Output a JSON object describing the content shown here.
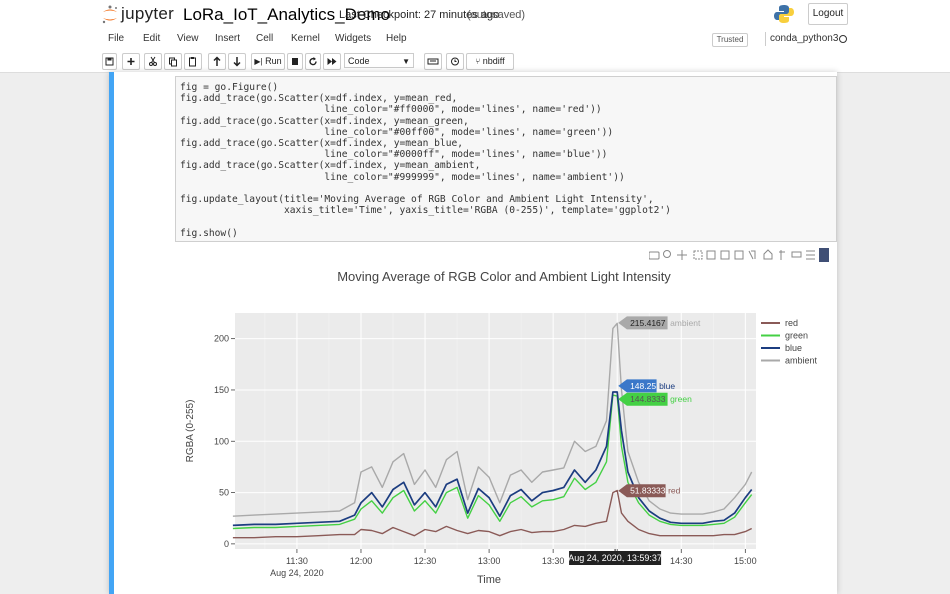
{
  "header": {
    "logo_text": "jupyter",
    "notebook_name": "LoRa_IoT_Analytics_Demo",
    "checkpoint": "Last Checkpoint: 27 minutes ago",
    "autosave_status": "(autosaved)",
    "logout_label": "Logout"
  },
  "menubar": {
    "items": [
      "File",
      "Edit",
      "View",
      "Insert",
      "Cell",
      "Kernel",
      "Widgets",
      "Help"
    ],
    "trusted_label": "Trusted",
    "kernel_name": "conda_python3"
  },
  "toolbar": {
    "run_label": "Run",
    "cell_type": "Code",
    "nbdiff_label": "nbdiff"
  },
  "code": {
    "lines": [
      "fig = go.Figure()",
      "fig.add_trace(go.Scatter(x=df.index, y=mean_red,",
      "                         line_color=\"#ff0000\", mode='lines', name='red'))",
      "fig.add_trace(go.Scatter(x=df.index, y=mean_green,",
      "                         line_color=\"#00ff00\", mode='lines', name='green'))",
      "fig.add_trace(go.Scatter(x=df.index, y=mean_blue,",
      "                         line_color=\"#0000ff\", mode='lines', name='blue'))",
      "fig.add_trace(go.Scatter(x=df.index, y=mean_ambient,",
      "                         line_color=\"#999999\", mode='lines', name='ambient'))",
      "",
      "fig.update_layout(title='Moving Average of RGB Color and Ambient Light Intensity',",
      "                  xaxis_title='Time', yaxis_title='RGBA (0-255)', template='ggplot2')",
      "",
      "fig.show()"
    ]
  },
  "chart_data": {
    "type": "line",
    "title": "Moving Average of RGB Color and Ambient Light Intensity",
    "xlabel": "Time",
    "ylabel": "RGBA (0-255)",
    "x_ticks": [
      "11:30",
      "12:00",
      "12:30",
      "13:00",
      "13:30",
      "14:00",
      "14:30",
      "15:00"
    ],
    "x_tick_date": "Aug 24, 2020",
    "y_ticks": [
      0,
      50,
      100,
      150,
      200
    ],
    "xlim": [
      "11:01",
      "15:05"
    ],
    "ylim": [
      -5,
      225
    ],
    "legend_position": "top-right",
    "grid": true,
    "colors": {
      "red": "#8a5a57",
      "green": "#44d044",
      "blue": "#1c3d80",
      "ambient": "#a9a9a9"
    },
    "x": [
      "11:00",
      "11:10",
      "11:20",
      "11:30",
      "11:40",
      "11:50",
      "11:57",
      "12:00",
      "12:05",
      "12:10",
      "12:15",
      "12:20",
      "12:25",
      "12:30",
      "12:35",
      "12:40",
      "12:45",
      "12:50",
      "12:55",
      "13:00",
      "13:05",
      "13:10",
      "13:15",
      "13:20",
      "13:25",
      "13:30",
      "13:35",
      "13:40",
      "13:45",
      "13:50",
      "13:55",
      "13:58",
      "14:00",
      "14:02",
      "14:05",
      "14:10",
      "14:15",
      "14:20",
      "14:25",
      "14:30",
      "14:35",
      "14:40",
      "14:45",
      "14:50",
      "14:55",
      "15:00",
      "15:03"
    ],
    "series": [
      {
        "name": "red",
        "values": [
          6,
          6,
          7,
          7,
          8,
          9,
          9,
          14,
          13,
          10,
          16,
          12,
          8,
          14,
          12,
          17,
          13,
          10,
          13,
          12,
          8,
          12,
          14,
          11,
          12,
          12,
          14,
          18,
          17,
          20,
          22,
          50,
          52,
          30,
          22,
          14,
          10,
          8,
          8,
          8,
          8,
          8,
          8,
          9,
          9,
          12,
          15
        ]
      },
      {
        "name": "green",
        "values": [
          15,
          16,
          16,
          17,
          18,
          19,
          24,
          34,
          42,
          30,
          45,
          52,
          32,
          42,
          30,
          50,
          55,
          25,
          47,
          38,
          22,
          40,
          46,
          36,
          42,
          43,
          46,
          64,
          53,
          60,
          80,
          145,
          144,
          95,
          60,
          40,
          28,
          22,
          19,
          18,
          18,
          18,
          19,
          20,
          26,
          40,
          48
        ]
      },
      {
        "name": "blue",
        "values": [
          18,
          19,
          19,
          20,
          21,
          22,
          28,
          40,
          50,
          36,
          53,
          60,
          38,
          50,
          36,
          58,
          63,
          30,
          54,
          45,
          27,
          47,
          53,
          42,
          50,
          52,
          55,
          72,
          60,
          72,
          95,
          148,
          148,
          110,
          70,
          45,
          32,
          25,
          21,
          20,
          20,
          20,
          22,
          23,
          30,
          45,
          53
        ]
      },
      {
        "name": "ambient",
        "values": [
          27,
          28,
          29,
          30,
          31,
          32,
          40,
          70,
          75,
          55,
          80,
          88,
          58,
          72,
          55,
          82,
          90,
          43,
          75,
          65,
          40,
          67,
          72,
          60,
          70,
          72,
          74,
          100,
          90,
          95,
          120,
          210,
          215,
          150,
          90,
          60,
          42,
          34,
          30,
          29,
          29,
          29,
          31,
          34,
          45,
          58,
          70
        ]
      }
    ],
    "hover": {
      "time_label": "Aug 24, 2020, 13:59:37",
      "ambient_value": "215.4167",
      "blue_value": "148.25",
      "green_value": "144.8333",
      "red_value": "51.83333"
    }
  }
}
